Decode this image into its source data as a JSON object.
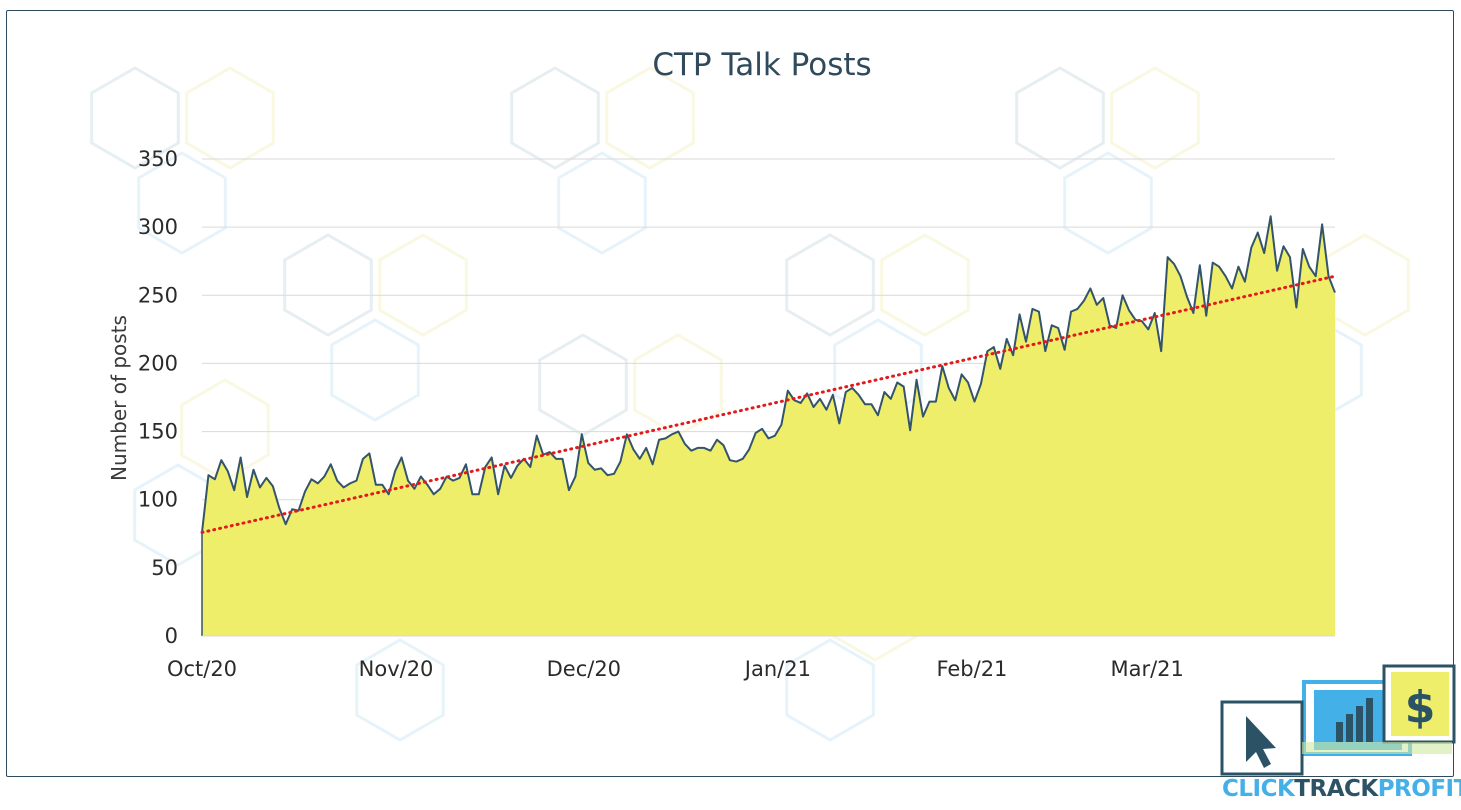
{
  "chart_data": {
    "type": "area",
    "title": "CTP Talk Posts",
    "xlabel": "",
    "ylabel": "Number of posts",
    "ylim": [
      0,
      350
    ],
    "yticks": [
      0,
      50,
      100,
      150,
      200,
      250,
      300,
      350
    ],
    "xticks": [
      "Oct/20",
      "Nov/20",
      "Dec/20",
      "Jan/21",
      "Feb/21",
      "Mar/21"
    ],
    "x_start": "2020-10-01",
    "x_end": "2021-03-31",
    "grid": true,
    "legend": "none",
    "series": [
      {
        "values": [
          76,
          118,
          115,
          129,
          121,
          107,
          131,
          102,
          122,
          109,
          116,
          110,
          94,
          82,
          93,
          92,
          106,
          115,
          112,
          117,
          126,
          114,
          109,
          112,
          114,
          130,
          134,
          111,
          111,
          104,
          121,
          131,
          114,
          108,
          117,
          111,
          104,
          108,
          117,
          114,
          116,
          126,
          104,
          104,
          124,
          131,
          104,
          125,
          116,
          125,
          130,
          124,
          147,
          133,
          135,
          130,
          130,
          107,
          117,
          148,
          127,
          122,
          123,
          118,
          119,
          128,
          148,
          137,
          130,
          138,
          126,
          144,
          145,
          148,
          150,
          141,
          136,
          138,
          138,
          136,
          144,
          140,
          129,
          128,
          130,
          137,
          149,
          152,
          145,
          147,
          155,
          180,
          173,
          171,
          178,
          168,
          174,
          166,
          177,
          156,
          179,
          182,
          177,
          170,
          170,
          162,
          179,
          174,
          186,
          183,
          151,
          188,
          161,
          172,
          172,
          198,
          182,
          173,
          192,
          186,
          172,
          185,
          209,
          212,
          196,
          218,
          206,
          236,
          216,
          240,
          238,
          209,
          228,
          226,
          210,
          238,
          240,
          246,
          255,
          243,
          248,
          228,
          226,
          250,
          239,
          232,
          231,
          225,
          237,
          209,
          278,
          273,
          264,
          249,
          237,
          272,
          235,
          274,
          271,
          264,
          255,
          271,
          260,
          285,
          296,
          281,
          308,
          268,
          286,
          278,
          241,
          284,
          271,
          264,
          302,
          264,
          252
        ],
        "color": "#33546a"
      }
    ],
    "trend": {
      "start": 76,
      "end": 264,
      "color": "#e31a1c"
    },
    "area_color": "#eeee6a"
  },
  "logo": {
    "part1": "CLICK",
    "part2": "TRACK",
    "part3": "PROFIT",
    "dollar": "$",
    "colors": {
      "dark": "#2c5266",
      "blue": "#43b0e8",
      "yellow": "#eeee6a"
    }
  }
}
